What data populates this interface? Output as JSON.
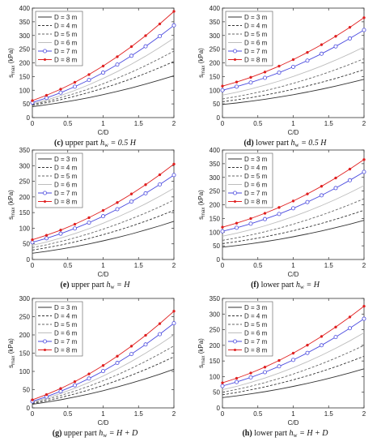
{
  "chart_data": [
    {
      "type": "line",
      "caption": {
        "letter": "(c)",
        "text": "upper part h",
        "sub": "w",
        "tail": " = 0.5 H"
      },
      "xlabel": "C/D",
      "ylabel": {
        "main": "s",
        "sub": "max",
        "unit": " (kPa)"
      },
      "xlim": [
        0,
        2
      ],
      "ylim": [
        0,
        400
      ],
      "xticks": [
        "0",
        "0.5",
        "1",
        "1.5",
        "2"
      ],
      "yticks": [
        "0",
        "50",
        "100",
        "150",
        "200",
        "250",
        "300",
        "350",
        "400"
      ],
      "legend": "top-left",
      "x": [
        0,
        0.2,
        0.4,
        0.6,
        0.8,
        1.0,
        1.2,
        1.4,
        1.6,
        1.8,
        2.0
      ],
      "series": [
        {
          "name": "D = 3 m",
          "style": "solid-dark",
          "start": 40,
          "end": 153
        },
        {
          "name": "D = 4 m",
          "style": "dash-dark",
          "start": 45,
          "end": 205
        },
        {
          "name": "D = 5 m",
          "style": "dash-mid",
          "start": 48,
          "end": 243
        },
        {
          "name": "D = 6 m",
          "style": "solid-light",
          "start": 50,
          "end": 290
        },
        {
          "name": "D = 7 m",
          "style": "blue-circle",
          "start": 55,
          "end": 337
        },
        {
          "name": "D = 8 m",
          "style": "red-dot",
          "start": 62,
          "end": 388
        }
      ]
    },
    {
      "type": "line",
      "caption": {
        "letter": "(d)",
        "text": "lower part h",
        "sub": "w",
        "tail": " = 0.5 H"
      },
      "xlabel": "C/D",
      "ylabel": {
        "main": "s",
        "sub": "max",
        "unit": " (kPa)"
      },
      "xlim": [
        0,
        2
      ],
      "ylim": [
        0,
        400
      ],
      "xticks": [
        "0",
        "0.5",
        "1",
        "1.5",
        "2"
      ],
      "yticks": [
        "0",
        "50",
        "100",
        "150",
        "200",
        "250",
        "300",
        "350",
        "400"
      ],
      "legend": "top-left",
      "x": [
        0,
        0.2,
        0.4,
        0.6,
        0.8,
        1.0,
        1.2,
        1.4,
        1.6,
        1.8,
        2.0
      ],
      "series": [
        {
          "name": "D = 3 m",
          "style": "solid-dark",
          "start": 48,
          "end": 140
        },
        {
          "name": "D = 4 m",
          "style": "dash-dark",
          "start": 58,
          "end": 175
        },
        {
          "name": "D = 5 m",
          "style": "dash-mid",
          "start": 68,
          "end": 215
        },
        {
          "name": "D = 6 m",
          "style": "solid-light",
          "start": 82,
          "end": 258
        },
        {
          "name": "D = 7 m",
          "style": "blue-circle",
          "start": 100,
          "end": 320
        },
        {
          "name": "D = 8 m",
          "style": "red-dot",
          "start": 115,
          "end": 365
        }
      ]
    },
    {
      "type": "line",
      "caption": {
        "letter": "(e)",
        "text": "upper part h",
        "sub": "w",
        "tail": " = H"
      },
      "xlabel": "C/D",
      "ylabel": {
        "main": "s",
        "sub": "max",
        "unit": " (kPa)"
      },
      "xlim": [
        0,
        2
      ],
      "ylim": [
        0,
        350
      ],
      "xticks": [
        "0",
        "0.5",
        "1",
        "1.5",
        "2"
      ],
      "yticks": [
        "0",
        "50",
        "100",
        "150",
        "200",
        "250",
        "300",
        "350"
      ],
      "legend": "top-left",
      "x": [
        0,
        0.2,
        0.4,
        0.6,
        0.8,
        1.0,
        1.2,
        1.4,
        1.6,
        1.8,
        2.0
      ],
      "series": [
        {
          "name": "D = 3 m",
          "style": "solid-dark",
          "start": 20,
          "end": 122
        },
        {
          "name": "D = 4 m",
          "style": "dash-dark",
          "start": 30,
          "end": 157
        },
        {
          "name": "D = 5 m",
          "style": "dash-mid",
          "start": 38,
          "end": 190
        },
        {
          "name": "D = 6 m",
          "style": "solid-light",
          "start": 45,
          "end": 228
        },
        {
          "name": "D = 7 m",
          "style": "blue-circle",
          "start": 55,
          "end": 270
        },
        {
          "name": "D = 8 m",
          "style": "red-dot",
          "start": 63,
          "end": 305
        }
      ]
    },
    {
      "type": "line",
      "caption": {
        "letter": "(f)",
        "text": "lower part h",
        "sub": "w",
        "tail": " = H"
      },
      "xlabel": "C/D",
      "ylabel": {
        "main": "s",
        "sub": "max",
        "unit": " (kPa)"
      },
      "xlim": [
        0,
        2
      ],
      "ylim": [
        0,
        400
      ],
      "xticks": [
        "0",
        "0.5",
        "1",
        "1.5",
        "2"
      ],
      "yticks": [
        "0",
        "50",
        "100",
        "150",
        "200",
        "250",
        "300",
        "350",
        "400"
      ],
      "legend": "top-left",
      "x": [
        0,
        0.2,
        0.4,
        0.6,
        0.8,
        1.0,
        1.2,
        1.4,
        1.6,
        1.8,
        2.0
      ],
      "series": [
        {
          "name": "D = 3 m",
          "style": "solid-dark",
          "start": 45,
          "end": 143
        },
        {
          "name": "D = 4 m",
          "style": "dash-dark",
          "start": 58,
          "end": 180
        },
        {
          "name": "D = 5 m",
          "style": "dash-mid",
          "start": 70,
          "end": 222
        },
        {
          "name": "D = 6 m",
          "style": "solid-light",
          "start": 85,
          "end": 270
        },
        {
          "name": "D = 7 m",
          "style": "blue-circle",
          "start": 103,
          "end": 320
        },
        {
          "name": "D = 8 m",
          "style": "red-dot",
          "start": 118,
          "end": 365
        }
      ]
    },
    {
      "type": "line",
      "caption": {
        "letter": "(g)",
        "text": "upper part h",
        "sub": "w",
        "tail": " = H + D"
      },
      "xlabel": "C/D",
      "ylabel": {
        "main": "s",
        "sub": "max",
        "unit": " (kPa)"
      },
      "xlim": [
        0,
        2
      ],
      "ylim": [
        0,
        300
      ],
      "xticks": [
        "0",
        "0.5",
        "1",
        "1.5",
        "2"
      ],
      "yticks": [
        "0",
        "50",
        "100",
        "150",
        "200",
        "250",
        "300"
      ],
      "legend": "top-left",
      "x": [
        0,
        0.2,
        0.4,
        0.6,
        0.8,
        1.0,
        1.2,
        1.4,
        1.6,
        1.8,
        2.0
      ],
      "series": [
        {
          "name": "D = 3 m",
          "style": "solid-dark",
          "start": 10,
          "end": 106
        },
        {
          "name": "D = 4 m",
          "style": "dash-dark",
          "start": 12,
          "end": 140
        },
        {
          "name": "D = 5 m",
          "style": "dash-mid",
          "start": 14,
          "end": 170
        },
        {
          "name": "D = 6 m",
          "style": "solid-light",
          "start": 16,
          "end": 200
        },
        {
          "name": "D = 7 m",
          "style": "blue-circle",
          "start": 18,
          "end": 232
        },
        {
          "name": "D = 8 m",
          "style": "red-dot",
          "start": 22,
          "end": 265
        }
      ]
    },
    {
      "type": "line",
      "caption": {
        "letter": "(h)",
        "text": "lower part h",
        "sub": "w",
        "tail": " = H + D"
      },
      "xlabel": "C/D",
      "ylabel": {
        "main": "s",
        "sub": "max",
        "unit": " (kPa)"
      },
      "xlim": [
        0,
        2
      ],
      "ylim": [
        0,
        350
      ],
      "xticks": [
        "0",
        "0.5",
        "1",
        "1.5",
        "2"
      ],
      "yticks": [
        "0",
        "50",
        "100",
        "150",
        "200",
        "250",
        "300",
        "350"
      ],
      "legend": "top-left",
      "x": [
        0,
        0.2,
        0.4,
        0.6,
        0.8,
        1.0,
        1.2,
        1.4,
        1.6,
        1.8,
        2.0
      ],
      "series": [
        {
          "name": "D = 3 m",
          "style": "solid-dark",
          "start": 33,
          "end": 125
        },
        {
          "name": "D = 4 m",
          "style": "dash-dark",
          "start": 42,
          "end": 165
        },
        {
          "name": "D = 5 m",
          "style": "dash-mid",
          "start": 50,
          "end": 200
        },
        {
          "name": "D = 6 m",
          "style": "solid-light",
          "start": 58,
          "end": 240
        },
        {
          "name": "D = 7 m",
          "style": "blue-circle",
          "start": 70,
          "end": 285
        },
        {
          "name": "D = 8 m",
          "style": "red-dot",
          "start": 80,
          "end": 325
        }
      ]
    }
  ],
  "styles": {
    "solid-dark": {
      "color": "#333333",
      "dash": ""
    },
    "dash-dark": {
      "color": "#333333",
      "dash": "3,2"
    },
    "dash-mid": {
      "color": "#666666",
      "dash": "3,2"
    },
    "solid-light": {
      "color": "#bdbdbd",
      "dash": ""
    },
    "blue-circle": {
      "color": "#4a4adf",
      "dash": ""
    },
    "red-dot": {
      "color": "#e02020",
      "dash": ""
    }
  }
}
